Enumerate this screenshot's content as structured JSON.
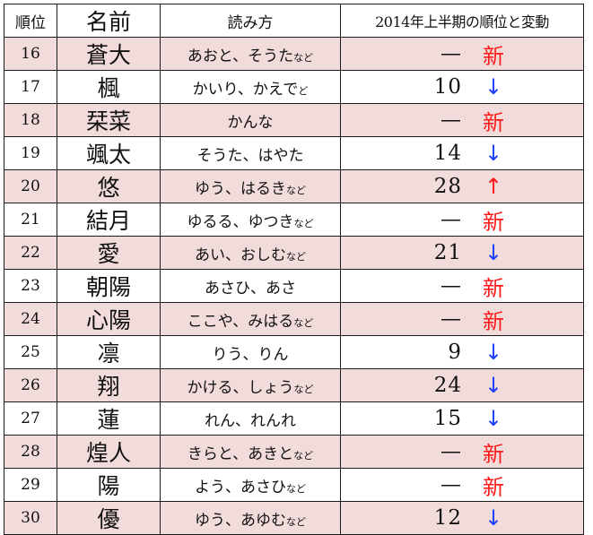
{
  "headers": {
    "rank": "順位",
    "name": "名前",
    "reading": "読み方",
    "change": "2014年上半期の順位と変動"
  },
  "colors": {
    "pink_row": "#f2dcdb",
    "new_mark": "#ff1a1a",
    "down_arrow": "#1f3fff",
    "up_arrow": "#ff1a1a"
  },
  "rows": [
    {
      "rank": "16",
      "name": "蒼大",
      "reading": "あおと、そうた",
      "suffix": "など",
      "prev": "—",
      "mark": "新",
      "mark_type": "new",
      "shade": "pink"
    },
    {
      "rank": "17",
      "name": "楓",
      "reading": "かいり、かえで",
      "suffix": "ど",
      "prev": "10",
      "mark": "↓",
      "mark_type": "down",
      "shade": "white"
    },
    {
      "rank": "18",
      "name": "栞菜",
      "reading": "かんな",
      "suffix": "",
      "prev": "—",
      "mark": "新",
      "mark_type": "new",
      "shade": "pink"
    },
    {
      "rank": "19",
      "name": "颯太",
      "reading": "そうた、はやた",
      "suffix": "",
      "prev": "14",
      "mark": "↓",
      "mark_type": "down",
      "shade": "white"
    },
    {
      "rank": "20",
      "name": "悠",
      "reading": "ゆう、はるき",
      "suffix": "など",
      "prev": "28",
      "mark": "↑",
      "mark_type": "up",
      "shade": "pink"
    },
    {
      "rank": "21",
      "name": "結月",
      "reading": "ゆるる、ゆつき",
      "suffix": "など",
      "prev": "—",
      "mark": "新",
      "mark_type": "new",
      "shade": "white"
    },
    {
      "rank": "22",
      "name": "愛",
      "reading": "あい、おしむ",
      "suffix": "など",
      "prev": "21",
      "mark": "↓",
      "mark_type": "down",
      "shade": "pink"
    },
    {
      "rank": "23",
      "name": "朝陽",
      "reading": "あさひ、あさ",
      "suffix": "",
      "prev": "—",
      "mark": "新",
      "mark_type": "new",
      "shade": "white"
    },
    {
      "rank": "24",
      "name": "心陽",
      "reading": "ここや、みはる",
      "suffix": "など",
      "prev": "—",
      "mark": "新",
      "mark_type": "new",
      "shade": "pink"
    },
    {
      "rank": "25",
      "name": "凛",
      "reading": "りう、りん",
      "suffix": "",
      "prev": "9",
      "mark": "↓",
      "mark_type": "down",
      "shade": "white"
    },
    {
      "rank": "26",
      "name": "翔",
      "reading": "かける、しょう",
      "suffix": "など",
      "prev": "24",
      "mark": "↓",
      "mark_type": "down",
      "shade": "pink"
    },
    {
      "rank": "27",
      "name": "蓮",
      "reading": "れん、れんれ",
      "suffix": "",
      "prev": "15",
      "mark": "↓",
      "mark_type": "down",
      "shade": "white"
    },
    {
      "rank": "28",
      "name": "煌人",
      "reading": "きらと、あきと",
      "suffix": "など",
      "prev": "—",
      "mark": "新",
      "mark_type": "new",
      "shade": "pink"
    },
    {
      "rank": "29",
      "name": "陽",
      "reading": "よう、あさひ",
      "suffix": "など",
      "prev": "—",
      "mark": "新",
      "mark_type": "new",
      "shade": "white"
    },
    {
      "rank": "30",
      "name": "優",
      "reading": "ゆう、あゆむ",
      "suffix": "など",
      "prev": "12",
      "mark": "↓",
      "mark_type": "down",
      "shade": "pink"
    }
  ]
}
